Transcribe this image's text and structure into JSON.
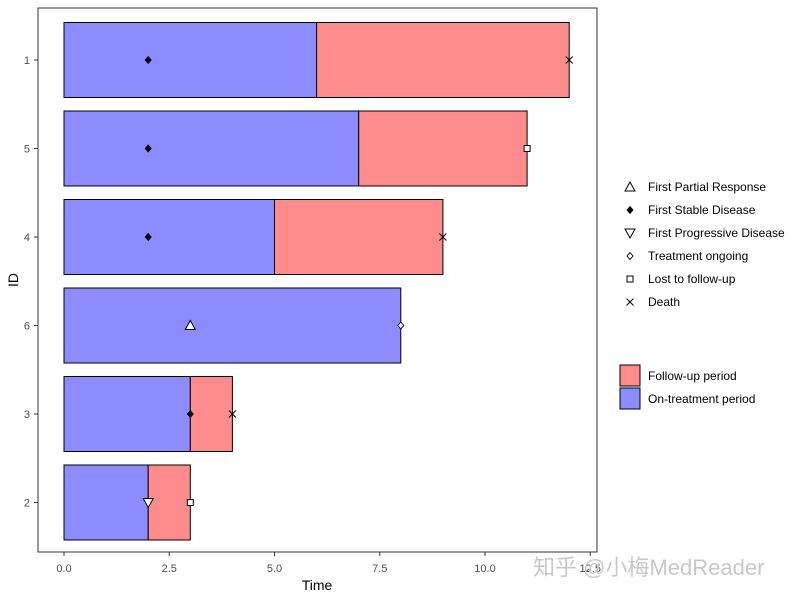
{
  "chart_data": {
    "type": "bar",
    "orientation": "horizontal",
    "stacked": true,
    "xlabel": "Time",
    "ylabel": "ID",
    "xlim": [
      0,
      12.5
    ],
    "x_ticks": [
      0,
      2.5,
      5,
      7.5,
      10,
      12.5
    ],
    "x_tick_labels": [
      "0.0",
      "2.5",
      "5.0",
      "7.5",
      "10.0",
      "12.5"
    ],
    "categories": [
      "1",
      "5",
      "4",
      "6",
      "3",
      "2"
    ],
    "series": [
      {
        "name": "On-treatment period",
        "color": "#8c8cff",
        "values": [
          6,
          7,
          5,
          8,
          3,
          2
        ]
      },
      {
        "name": "Follow-up period",
        "color": "#ff8c8c",
        "values": [
          6,
          4,
          4,
          0,
          1,
          1
        ]
      }
    ],
    "events": [
      {
        "id": "1",
        "time": 2,
        "type": "First Stable Disease"
      },
      {
        "id": "1",
        "time": 12,
        "type": "Death"
      },
      {
        "id": "5",
        "time": 2,
        "type": "First Stable Disease"
      },
      {
        "id": "5",
        "time": 11,
        "type": "Lost to follow-up"
      },
      {
        "id": "4",
        "time": 2,
        "type": "First Stable Disease"
      },
      {
        "id": "4",
        "time": 9,
        "type": "Death"
      },
      {
        "id": "6",
        "time": 3,
        "type": "First Partial Response"
      },
      {
        "id": "6",
        "time": 8,
        "type": "Treatment ongoing"
      },
      {
        "id": "3",
        "time": 3,
        "type": "First Stable Disease"
      },
      {
        "id": "3",
        "time": 4,
        "type": "Death"
      },
      {
        "id": "2",
        "time": 2,
        "type": "First Progressive Disease"
      },
      {
        "id": "2",
        "time": 3,
        "type": "Lost to follow-up"
      }
    ],
    "legend_markers": [
      {
        "label": "First Partial Response",
        "icon": "triangle-up-icon"
      },
      {
        "label": "First Stable Disease",
        "icon": "diamond-icon"
      },
      {
        "label": "First Progressive Disease",
        "icon": "triangle-down-icon"
      },
      {
        "label": "Treatment ongoing",
        "icon": "diamond-open-icon"
      },
      {
        "label": "Lost to follow-up",
        "icon": "square-open-icon"
      },
      {
        "label": "Death",
        "icon": "cross-icon"
      }
    ],
    "legend_fills": [
      {
        "label": "Follow-up period",
        "color": "#ff8c8c"
      },
      {
        "label": "On-treatment period",
        "color": "#8c8cff"
      }
    ],
    "legend_position": "right",
    "grid": false
  },
  "watermark": "知乎 @小梅MedReader"
}
